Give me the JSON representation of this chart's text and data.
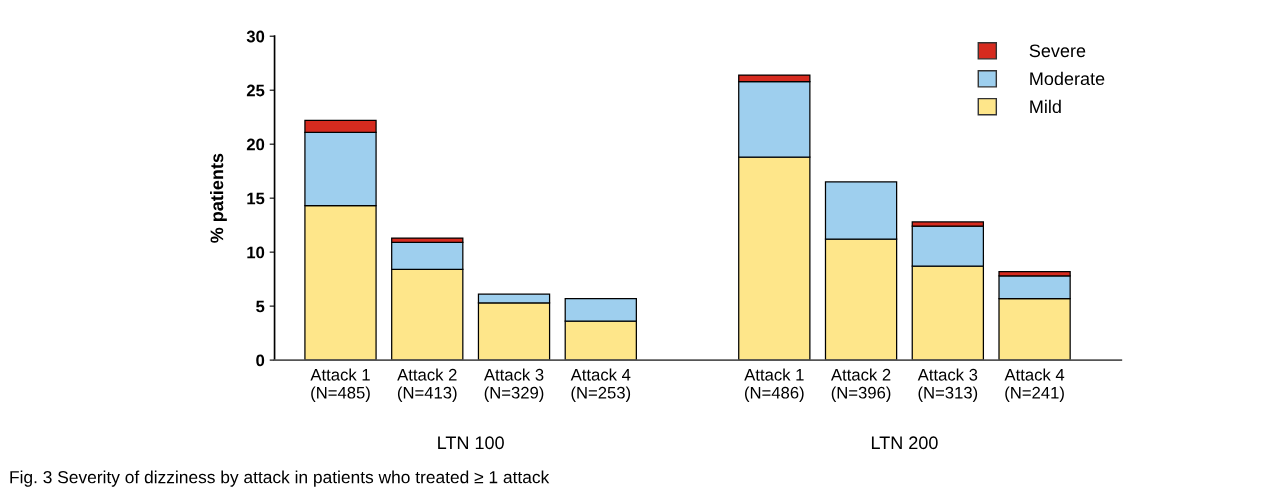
{
  "chart_data": {
    "type": "bar",
    "stacked": true,
    "ylabel": "% patients",
    "categories": [
      "Attack 1\n(N=485)",
      "Attack 2\n(N=413)",
      "Attack 3\n(N=329)",
      "Attack 4\n(N=253)",
      null,
      "Attack 1\n(N=486)",
      "Attack 2\n(N=396)",
      "Attack 3\n(N=313)",
      "Attack 4\n(N=241)"
    ],
    "series": [
      {
        "name": "Mild",
        "color": "#fee68a",
        "values": [
          14.3,
          8.4,
          5.3,
          3.6,
          null,
          18.8,
          11.2,
          8.7,
          5.7
        ]
      },
      {
        "name": "Moderate",
        "color": "#9ecfee",
        "values": [
          6.8,
          2.5,
          0.8,
          2.1,
          null,
          7.0,
          5.3,
          3.7,
          2.1
        ]
      },
      {
        "name": "Severe",
        "color": "#d62b1f",
        "values": [
          1.1,
          0.4,
          null,
          null,
          null,
          0.6,
          null,
          0.4,
          0.4
        ]
      }
    ],
    "ylim": [
      0,
      30
    ],
    "yticks": [
      0,
      5,
      10,
      15,
      20,
      25,
      30
    ],
    "grid": false,
    "legend": "top right",
    "annotations": [
      "LTN 100",
      "LTN 200",
      "Fig. 3 Severity of dizziness by attack in patients who treated ≥ 1 attack"
    ]
  }
}
